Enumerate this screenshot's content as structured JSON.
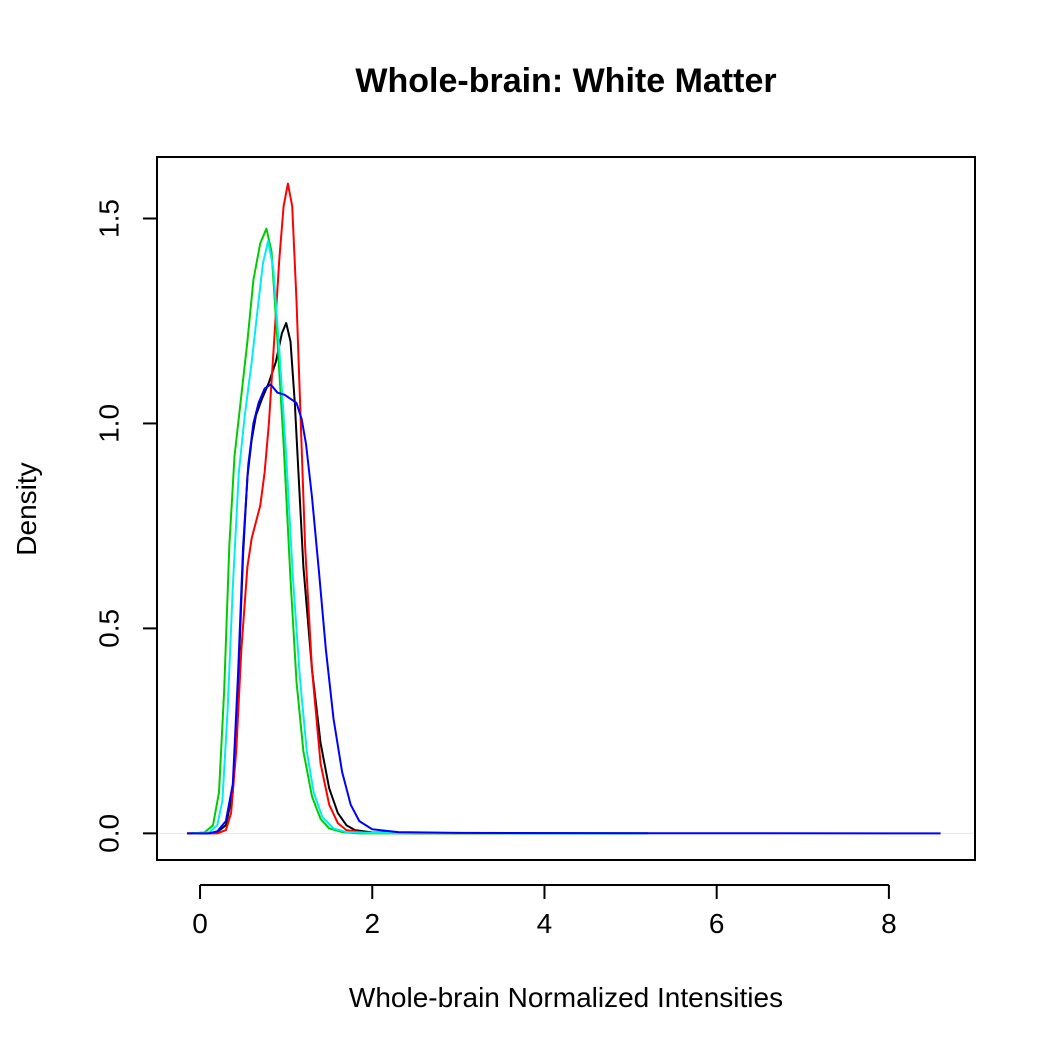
{
  "chart_data": {
    "type": "line",
    "title": "Whole-brain: White Matter",
    "xlabel": "Whole-brain Normalized Intensities",
    "ylabel": "Density",
    "xlim": [
      -0.5,
      9.0
    ],
    "ylim": [
      -0.065,
      1.65
    ],
    "x_ticks": [
      "0",
      "2",
      "4",
      "6",
      "8"
    ],
    "y_ticks": [
      "0.0",
      "0.5",
      "1.0",
      "1.5"
    ],
    "grid": false,
    "legend": "none",
    "series": [
      {
        "color": "#000000",
        "points": [
          [
            -0.15,
            0
          ],
          [
            0.1,
            0
          ],
          [
            0.2,
            0.003
          ],
          [
            0.3,
            0.02
          ],
          [
            0.38,
            0.1
          ],
          [
            0.44,
            0.35
          ],
          [
            0.5,
            0.68
          ],
          [
            0.55,
            0.87
          ],
          [
            0.6,
            0.96
          ],
          [
            0.65,
            1.02
          ],
          [
            0.72,
            1.06
          ],
          [
            0.8,
            1.1
          ],
          [
            0.88,
            1.15
          ],
          [
            0.95,
            1.22
          ],
          [
            1.0,
            1.245
          ],
          [
            1.05,
            1.2
          ],
          [
            1.1,
            1.05
          ],
          [
            1.15,
            0.85
          ],
          [
            1.2,
            0.65
          ],
          [
            1.3,
            0.4
          ],
          [
            1.4,
            0.22
          ],
          [
            1.5,
            0.11
          ],
          [
            1.6,
            0.05
          ],
          [
            1.7,
            0.02
          ],
          [
            1.8,
            0.008
          ],
          [
            2.0,
            0.002
          ],
          [
            3.0,
            0.0005
          ],
          [
            5.2,
            0
          ]
        ]
      },
      {
        "color": "#ff0000",
        "points": [
          [
            -0.15,
            0
          ],
          [
            0.2,
            0
          ],
          [
            0.3,
            0.008
          ],
          [
            0.36,
            0.05
          ],
          [
            0.42,
            0.2
          ],
          [
            0.48,
            0.45
          ],
          [
            0.55,
            0.65
          ],
          [
            0.6,
            0.72
          ],
          [
            0.65,
            0.76
          ],
          [
            0.7,
            0.8
          ],
          [
            0.75,
            0.88
          ],
          [
            0.8,
            1.0
          ],
          [
            0.86,
            1.2
          ],
          [
            0.92,
            1.4
          ],
          [
            0.97,
            1.53
          ],
          [
            1.02,
            1.585
          ],
          [
            1.07,
            1.53
          ],
          [
            1.12,
            1.3
          ],
          [
            1.17,
            1.0
          ],
          [
            1.22,
            0.7
          ],
          [
            1.3,
            0.4
          ],
          [
            1.4,
            0.17
          ],
          [
            1.5,
            0.07
          ],
          [
            1.6,
            0.025
          ],
          [
            1.7,
            0.008
          ],
          [
            1.9,
            0.002
          ],
          [
            2.5,
            0
          ],
          [
            5.2,
            0
          ]
        ]
      },
      {
        "color": "#00cd00",
        "points": [
          [
            -0.1,
            0
          ],
          [
            0.05,
            0.002
          ],
          [
            0.15,
            0.02
          ],
          [
            0.22,
            0.1
          ],
          [
            0.28,
            0.35
          ],
          [
            0.34,
            0.7
          ],
          [
            0.4,
            0.92
          ],
          [
            0.47,
            1.05
          ],
          [
            0.55,
            1.2
          ],
          [
            0.62,
            1.35
          ],
          [
            0.7,
            1.44
          ],
          [
            0.77,
            1.475
          ],
          [
            0.83,
            1.42
          ],
          [
            0.9,
            1.2
          ],
          [
            0.97,
            0.95
          ],
          [
            1.05,
            0.62
          ],
          [
            1.12,
            0.37
          ],
          [
            1.2,
            0.2
          ],
          [
            1.3,
            0.09
          ],
          [
            1.4,
            0.035
          ],
          [
            1.5,
            0.012
          ],
          [
            1.65,
            0.003
          ],
          [
            1.85,
            0
          ],
          [
            5.2,
            0
          ]
        ]
      },
      {
        "color": "#00eeee",
        "points": [
          [
            -0.1,
            0
          ],
          [
            0.1,
            0.002
          ],
          [
            0.2,
            0.02
          ],
          [
            0.26,
            0.08
          ],
          [
            0.32,
            0.3
          ],
          [
            0.38,
            0.6
          ],
          [
            0.45,
            0.88
          ],
          [
            0.52,
            1.02
          ],
          [
            0.6,
            1.15
          ],
          [
            0.67,
            1.28
          ],
          [
            0.73,
            1.39
          ],
          [
            0.79,
            1.445
          ],
          [
            0.85,
            1.38
          ],
          [
            0.92,
            1.18
          ],
          [
            1.0,
            0.92
          ],
          [
            1.08,
            0.62
          ],
          [
            1.16,
            0.38
          ],
          [
            1.24,
            0.2
          ],
          [
            1.32,
            0.1
          ],
          [
            1.42,
            0.04
          ],
          [
            1.55,
            0.012
          ],
          [
            1.7,
            0.003
          ],
          [
            2.0,
            0.001
          ],
          [
            3.0,
            0.0008
          ],
          [
            5.2,
            0
          ]
        ]
      },
      {
        "color": "#0000ff",
        "points": [
          [
            -0.15,
            0
          ],
          [
            0.1,
            0
          ],
          [
            0.2,
            0.005
          ],
          [
            0.3,
            0.03
          ],
          [
            0.38,
            0.12
          ],
          [
            0.44,
            0.38
          ],
          [
            0.5,
            0.7
          ],
          [
            0.56,
            0.9
          ],
          [
            0.62,
            1.0
          ],
          [
            0.68,
            1.05
          ],
          [
            0.75,
            1.085
          ],
          [
            0.82,
            1.095
          ],
          [
            0.9,
            1.075
          ],
          [
            0.98,
            1.07
          ],
          [
            1.05,
            1.06
          ],
          [
            1.12,
            1.05
          ],
          [
            1.18,
            1.01
          ],
          [
            1.23,
            0.95
          ],
          [
            1.3,
            0.82
          ],
          [
            1.38,
            0.64
          ],
          [
            1.46,
            0.45
          ],
          [
            1.55,
            0.28
          ],
          [
            1.65,
            0.15
          ],
          [
            1.75,
            0.07
          ],
          [
            1.85,
            0.03
          ],
          [
            2.0,
            0.01
          ],
          [
            2.3,
            0.003
          ],
          [
            3.0,
            0.001
          ],
          [
            5.0,
            0.0005
          ],
          [
            8.6,
            0
          ]
        ]
      }
    ]
  }
}
